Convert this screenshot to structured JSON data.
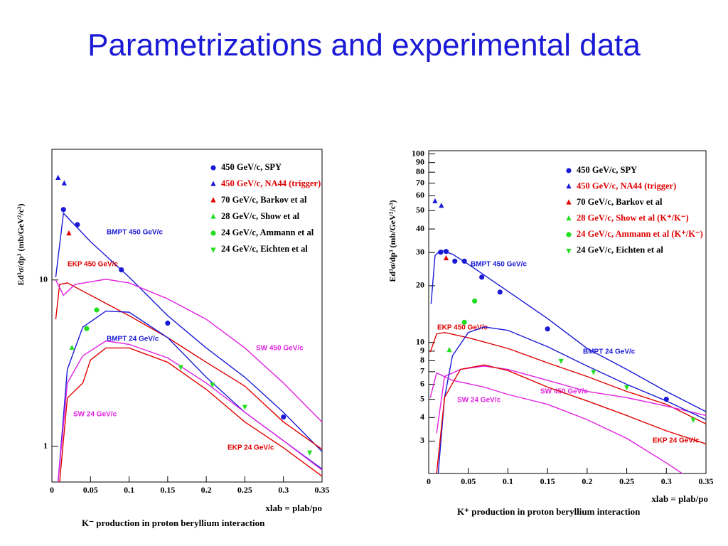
{
  "title": "Parametrizations and experimental data",
  "chart_data": [
    {
      "type": "scatter",
      "log_y": true,
      "y_label": "Ed³σ/dp³  (mb/GeV²/c³)",
      "x_label": "xlab = plab/po",
      "caption": "K⁻ production in proton beryllium interaction",
      "xlim": [
        0,
        0.35
      ],
      "xticks": [
        0,
        0.05,
        0.1,
        0.15,
        0.2,
        0.25,
        0.3,
        0.35
      ],
      "ylim": [
        0.61,
        61
      ],
      "yticks": [
        1,
        10
      ],
      "series": [
        {
          "name": "450 GeV/c, SPY",
          "color": "#1a1ad6",
          "label_color": "#000000",
          "marker": "circle",
          "x": [
            0.015,
            0.033,
            0.09,
            0.15,
            0.3
          ],
          "values": [
            26.5,
            21.5,
            11.5,
            5.5,
            1.5
          ]
        },
        {
          "name": "450 GeV/c, NA44 (trigger)",
          "color": "#1a1ad6",
          "label_color": "#e00000",
          "marker": "triangle-up",
          "x": [
            0.008,
            0.016
          ],
          "values": [
            41,
            38
          ]
        },
        {
          "name": "70 GeV/c, Barkov et al",
          "color": "#e00000",
          "label_color": "#000000",
          "marker": "triangle-up",
          "x": [
            0.022
          ],
          "values": [
            19
          ]
        },
        {
          "name": "28 GeV/c, Show et al",
          "color": "#22dd22",
          "label_color": "#000000",
          "marker": "triangle-up",
          "x": [
            0.026
          ],
          "values": [
            3.9
          ]
        },
        {
          "name": "24 GeV/c, Ammann et al",
          "color": "#22dd22",
          "label_color": "#000000",
          "marker": "circle",
          "x": [
            0.045,
            0.058
          ],
          "values": [
            5.1,
            6.6
          ]
        },
        {
          "name": "24 GeV/c, Eichten et al",
          "color": "#22dd22",
          "label_color": "#000000",
          "marker": "triangle-down",
          "x": [
            0.167,
            0.208,
            0.25,
            0.334
          ],
          "values": [
            3.0,
            2.35,
            1.73,
            0.92
          ]
        }
      ],
      "curves": [
        {
          "name": "BMPT 450 GeV/c",
          "color": "#1a1ad6",
          "x": [
            0.005,
            0.015,
            0.05,
            0.1,
            0.15,
            0.2,
            0.25,
            0.3,
            0.35
          ],
          "values": [
            10.4,
            25.2,
            17.0,
            10.4,
            6.1,
            3.9,
            2.6,
            1.6,
            0.93
          ]
        },
        {
          "name": "EKP 450 GeV/c",
          "color": "#e00000",
          "x": [
            0.005,
            0.01,
            0.02,
            0.05,
            0.1,
            0.15,
            0.2,
            0.25,
            0.3,
            0.35
          ],
          "values": [
            5.8,
            9.4,
            9.6,
            8.1,
            6.1,
            4.5,
            3.2,
            2.3,
            1.4,
            0.96
          ]
        },
        {
          "name": "SW 450 GeV/c",
          "color": "#e020e0",
          "x": [
            0.005,
            0.015,
            0.03,
            0.07,
            0.1,
            0.15,
            0.2,
            0.25,
            0.3,
            0.35
          ],
          "values": [
            10,
            8.1,
            9.4,
            10.1,
            9.6,
            7.7,
            5.8,
            3.9,
            2.4,
            1.4
          ]
        },
        {
          "name": "BMPT 24 GeV/c",
          "color": "#1a1ad6",
          "x": [
            0.008,
            0.02,
            0.04,
            0.07,
            0.1,
            0.15,
            0.2,
            0.25,
            0.3,
            0.35
          ],
          "values": [
            0.61,
            2.9,
            5.2,
            6.5,
            6.4,
            4.5,
            2.6,
            1.6,
            1.08,
            0.73
          ]
        },
        {
          "name": "SW 24 GeV/c",
          "color": "#e020e0",
          "x": [
            0.008,
            0.02,
            0.04,
            0.07,
            0.1,
            0.15,
            0.2,
            0.25,
            0.3,
            0.35
          ],
          "values": [
            0.61,
            2.4,
            3.5,
            4.3,
            4.1,
            3.4,
            2.4,
            1.6,
            1.08,
            0.72
          ]
        },
        {
          "name": "EKP 24 GeV/c",
          "color": "#e00000",
          "x": [
            0.01,
            0.02,
            0.04,
            0.05,
            0.07,
            0.1,
            0.15,
            0.2,
            0.25,
            0.3,
            0.35
          ],
          "values": [
            0.61,
            1.95,
            2.4,
            3.3,
            3.9,
            3.9,
            3.2,
            2.2,
            1.4,
            0.98,
            0.66
          ]
        }
      ]
    },
    {
      "type": "scatter",
      "log_y": true,
      "y_label": "Ed³σ/dp³  (mb/GeV²/c³)",
      "x_label": "xlab = plab/po",
      "caption": "K⁺ production in proton beryllium interaction",
      "xlim": [
        0,
        0.35
      ],
      "xticks": [
        0,
        0.05,
        0.1,
        0.15,
        0.2,
        0.25,
        0.3,
        0.35
      ],
      "ylim": [
        2.02,
        104
      ],
      "yticks": [
        3,
        4,
        5,
        6,
        7,
        8,
        9,
        10,
        20,
        30,
        40,
        50,
        60,
        70,
        80,
        90,
        100
      ],
      "series": [
        {
          "name": "450 GeV/c, SPY",
          "color": "#1a1ad6",
          "label_color": "#000000",
          "marker": "circle",
          "x": [
            0.015,
            0.022,
            0.033,
            0.045,
            0.067,
            0.09,
            0.15,
            0.3
          ],
          "values": [
            30.1,
            30.4,
            27,
            27,
            22.2,
            18.5,
            11.8,
            5.0
          ]
        },
        {
          "name": "450 GeV/c, NA44 (trigger)",
          "color": "#1a1ad6",
          "label_color": "#e00000",
          "marker": "triangle-up",
          "x": [
            0.008,
            0.016
          ],
          "values": [
            56,
            53
          ]
        },
        {
          "name": "70 GeV/c, Barkov et al",
          "color": "#e00000",
          "label_color": "#000000",
          "marker": "triangle-up",
          "x": [
            0.022
          ],
          "values": [
            27.9
          ]
        },
        {
          "name": "28 GeV/c, Show et al (K⁺/K⁻)",
          "color": "#22dd22",
          "label_color": "#e00000",
          "marker": "triangle-up",
          "x": [
            0.026
          ],
          "values": [
            9.1
          ]
        },
        {
          "name": "24 GeV/c, Ammann et al (K⁺/K⁻)",
          "color": "#22dd22",
          "label_color": "#e00000",
          "marker": "circle",
          "x": [
            0.045,
            0.058
          ],
          "values": [
            12.8,
            16.6
          ]
        },
        {
          "name": "24 GeV/c, Eichten et al",
          "color": "#22dd22",
          "label_color": "#000000",
          "marker": "triangle-down",
          "x": [
            0.167,
            0.208,
            0.25,
            0.334
          ],
          "values": [
            8.0,
            7.0,
            5.8,
            3.9
          ]
        }
      ],
      "curves": [
        {
          "name": "BMPT 450 GeV/c",
          "color": "#1a1ad6",
          "x": [
            0.003,
            0.008,
            0.015,
            0.03,
            0.05,
            0.1,
            0.15,
            0.2,
            0.25,
            0.3,
            0.35
          ],
          "values": [
            16.0,
            28.9,
            30.9,
            29.4,
            26.0,
            18.7,
            13.4,
            9.3,
            7.2,
            5.5,
            4.3
          ]
        },
        {
          "name": "EKP 450 GeV/c",
          "color": "#e00000",
          "x": [
            0.002,
            0.01,
            0.02,
            0.05,
            0.1,
            0.15,
            0.2,
            0.25,
            0.3,
            0.35
          ],
          "values": [
            8.9,
            11.1,
            11.3,
            10.6,
            9.3,
            7.8,
            6.6,
            5.5,
            4.7,
            3.7
          ]
        },
        {
          "name": "SW 450 GeV/c",
          "color": "#e020e0",
          "x": [
            0.01,
            0.02,
            0.04,
            0.07,
            0.1,
            0.15,
            0.2,
            0.25,
            0.3,
            0.35
          ],
          "values": [
            3.3,
            6.6,
            7.2,
            7.5,
            7.2,
            6.3,
            5.5,
            5.1,
            4.6,
            4.1
          ]
        },
        {
          "name": "BMPT 24 GeV/c",
          "color": "#1a1ad6",
          "x": [
            0.012,
            0.02,
            0.03,
            0.05,
            0.07,
            0.1,
            0.15,
            0.2,
            0.25,
            0.3,
            0.35
          ],
          "values": [
            2.02,
            5.1,
            8.5,
            11.3,
            12.1,
            11.6,
            9.5,
            7.5,
            6.0,
            4.9,
            3.9
          ]
        },
        {
          "name": "SW 24 GeV/c",
          "color": "#e020e0",
          "x": [
            0.002,
            0.01,
            0.03,
            0.07,
            0.1,
            0.15,
            0.2,
            0.25,
            0.3,
            0.32
          ],
          "values": [
            5.1,
            6.9,
            6.3,
            5.8,
            5.3,
            4.7,
            3.9,
            3.1,
            2.3,
            2.02
          ]
        },
        {
          "name": "EKP 24 GeV/c",
          "color": "#e00000",
          "x": [
            0.01,
            0.02,
            0.04,
            0.07,
            0.1,
            0.15,
            0.2,
            0.25,
            0.3,
            0.35
          ],
          "values": [
            2.02,
            5.1,
            7.2,
            7.6,
            7.1,
            5.8,
            4.9,
            4.1,
            3.4,
            2.9
          ]
        }
      ]
    }
  ]
}
